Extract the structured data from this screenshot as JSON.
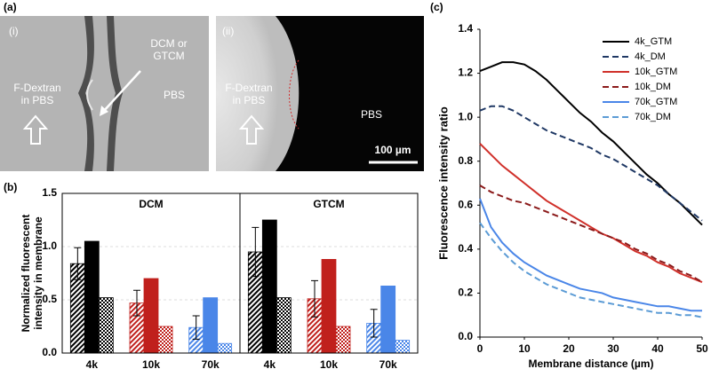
{
  "panel_a": {
    "label": "(a)",
    "image_i": {
      "label": "(i)",
      "arrow_note": [
        "DCM or",
        "GTCM"
      ],
      "left_note": [
        "F-Dextran",
        "in PBS"
      ],
      "right_note": "PBS"
    },
    "image_ii": {
      "label": "(ii)",
      "left_note": [
        "F-Dextran",
        "in PBS"
      ],
      "right_note": "PBS",
      "scale_bar": "100 µm"
    }
  },
  "chart_data": [
    {
      "type": "bar",
      "label": "(b)",
      "ylabel": [
        "Normalized fluorescent",
        "intensity in membrane"
      ],
      "ylim": [
        0,
        1.5
      ],
      "yticks": [
        {
          "value": 0,
          "label": "0.0"
        },
        0.5,
        {
          "value": 1,
          "label": "1.0"
        },
        1.5
      ],
      "grid": true,
      "categories": [
        "4k",
        "10k",
        "70k"
      ],
      "category_colors": [
        "#000000",
        "#c0201c",
        "#4a86e8"
      ],
      "groups": [
        {
          "title": "DCM",
          "series": [
            {
              "pattern": "hatch",
              "values": [
                0.84,
                0.47,
                0.24
              ],
              "errors": [
                0.15,
                0.12,
                0.11
              ]
            },
            {
              "pattern": "solid",
              "values": [
                1.05,
                0.7,
                0.52
              ]
            },
            {
              "pattern": "check",
              "values": [
                0.52,
                0.25,
                0.09
              ]
            }
          ]
        },
        {
          "title": "GTCM",
          "series": [
            {
              "pattern": "hatch",
              "values": [
                0.95,
                0.51,
                0.28
              ],
              "errors": [
                0.23,
                0.17,
                0.13
              ]
            },
            {
              "pattern": "solid",
              "values": [
                1.25,
                0.88,
                0.63
              ]
            },
            {
              "pattern": "check",
              "values": [
                0.52,
                0.25,
                0.12
              ]
            }
          ]
        }
      ]
    },
    {
      "type": "line",
      "label": "(c)",
      "xlabel": "Membrane distance (µm)",
      "ylabel": "Fluorescence intensity ratio",
      "xlim": [
        0,
        50
      ],
      "xticks": [
        0,
        10,
        20,
        30,
        40,
        50
      ],
      "ylim": [
        0,
        1.4
      ],
      "yticks": [
        {
          "value": 0,
          "label": "0.0"
        },
        0.2,
        0.4,
        0.6,
        0.8,
        {
          "value": 1,
          "label": "1.0"
        },
        1.2,
        1.4
      ],
      "legend": "top-right",
      "x": [
        0,
        2.5,
        5,
        7.5,
        10,
        12.5,
        15,
        17.5,
        20,
        22.5,
        25,
        27.5,
        30,
        32.5,
        35,
        37.5,
        40,
        42.5,
        45,
        47.5,
        50
      ],
      "series": [
        {
          "name": "4k_GTM",
          "color": "#000000",
          "dash": false,
          "values": [
            1.21,
            1.23,
            1.25,
            1.25,
            1.24,
            1.21,
            1.17,
            1.12,
            1.07,
            1.02,
            0.98,
            0.93,
            0.89,
            0.84,
            0.79,
            0.74,
            0.7,
            0.65,
            0.61,
            0.56,
            0.51
          ]
        },
        {
          "name": "4k_DM",
          "color": "#1f3864",
          "dash": true,
          "values": [
            1.03,
            1.05,
            1.05,
            1.03,
            1.0,
            0.97,
            0.94,
            0.92,
            0.9,
            0.88,
            0.86,
            0.83,
            0.81,
            0.78,
            0.75,
            0.72,
            0.69,
            0.65,
            0.61,
            0.57,
            0.53
          ]
        },
        {
          "name": "10k_GTM",
          "color": "#d0302a",
          "dash": false,
          "values": [
            0.88,
            0.83,
            0.78,
            0.74,
            0.7,
            0.66,
            0.62,
            0.59,
            0.56,
            0.53,
            0.5,
            0.47,
            0.45,
            0.42,
            0.39,
            0.37,
            0.34,
            0.32,
            0.29,
            0.27,
            0.25
          ]
        },
        {
          "name": "10k_DM",
          "color": "#8b1a1a",
          "dash": true,
          "values": [
            0.69,
            0.66,
            0.64,
            0.62,
            0.61,
            0.59,
            0.57,
            0.55,
            0.53,
            0.51,
            0.49,
            0.47,
            0.45,
            0.43,
            0.4,
            0.38,
            0.35,
            0.33,
            0.3,
            0.28,
            0.25
          ]
        },
        {
          "name": "70k_GTM",
          "color": "#4a86e8",
          "dash": false,
          "values": [
            0.63,
            0.5,
            0.43,
            0.38,
            0.34,
            0.31,
            0.28,
            0.26,
            0.24,
            0.22,
            0.21,
            0.2,
            0.18,
            0.17,
            0.16,
            0.15,
            0.14,
            0.14,
            0.13,
            0.12,
            0.12
          ]
        },
        {
          "name": "70k_DM",
          "color": "#5b9bd5",
          "dash": true,
          "values": [
            0.52,
            0.45,
            0.39,
            0.34,
            0.3,
            0.27,
            0.24,
            0.22,
            0.2,
            0.18,
            0.17,
            0.16,
            0.15,
            0.14,
            0.13,
            0.12,
            0.11,
            0.11,
            0.1,
            0.1,
            0.09
          ]
        }
      ]
    }
  ]
}
